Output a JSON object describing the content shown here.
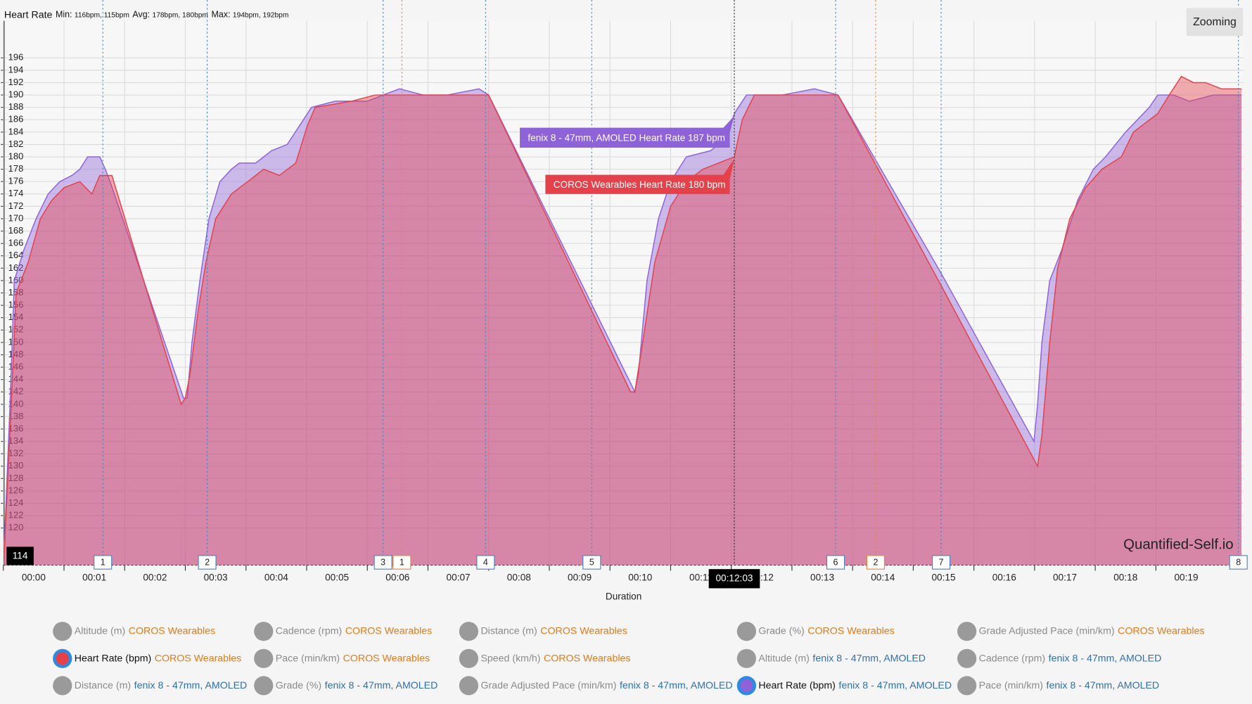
{
  "chart_data": {
    "type": "area",
    "title": "Heart Rate",
    "stats": [
      {
        "label": "Min:",
        "value": "116bpm, 115bpm"
      },
      {
        "label": "Avg:",
        "value": "178bpm, 180bpm"
      },
      {
        "label": "Max:",
        "value": "194bpm, 192bpm"
      }
    ],
    "x_label": "Duration",
    "xlim": [
      0,
      20.45
    ],
    "ylim": [
      114,
      202
    ],
    "grid": true,
    "xticks": [
      {
        "value": 0,
        "label": "00:00"
      },
      {
        "value": 1,
        "label": "00:01"
      },
      {
        "value": 2,
        "label": "00:02"
      },
      {
        "value": 3,
        "label": "00:03"
      },
      {
        "value": 4,
        "label": "00:04"
      },
      {
        "value": 5,
        "label": "00:05"
      },
      {
        "value": 6,
        "label": "00:06"
      },
      {
        "value": 7,
        "label": "00:07"
      },
      {
        "value": 8,
        "label": "00:08"
      },
      {
        "value": 9,
        "label": "00:09"
      },
      {
        "value": 10,
        "label": "00:10"
      },
      {
        "value": 11,
        "label": "00:11"
      },
      {
        "value": 12,
        "label": "00:12"
      },
      {
        "value": 13,
        "label": "00:13"
      },
      {
        "value": 14,
        "label": "00:14"
      },
      {
        "value": 15,
        "label": "00:15"
      },
      {
        "value": 16,
        "label": "00:16"
      },
      {
        "value": 17,
        "label": "00:17"
      },
      {
        "value": 18,
        "label": "00:18"
      },
      {
        "value": 19,
        "label": "00:19"
      }
    ],
    "yticks": [
      120,
      122,
      124,
      126,
      128,
      130,
      132,
      134,
      136,
      138,
      140,
      142,
      144,
      146,
      148,
      150,
      152,
      154,
      156,
      158,
      160,
      162,
      164,
      166,
      168,
      170,
      172,
      174,
      176,
      178,
      180,
      182,
      184,
      186,
      188,
      190,
      192,
      194,
      196
    ],
    "series": [
      {
        "name": "fenix 8 - 47mm, AMOLED",
        "color": "#8e63d8",
        "x": [
          0.01,
          0.11,
          0.18,
          0.34,
          0.54,
          0.74,
          0.93,
          1.13,
          1.26,
          1.39,
          1.59,
          1.68,
          1.76,
          2.97,
          3.03,
          3.11,
          3.24,
          3.39,
          3.57,
          3.76,
          3.89,
          4.16,
          4.42,
          4.68,
          4.88,
          5.08,
          5.47,
          6.0,
          6.26,
          6.53,
          6.92,
          7.32,
          7.84,
          8.0,
          10.41,
          10.47,
          10.61,
          10.8,
          11.0,
          11.26,
          11.66,
          11.92,
          12.05,
          12.25,
          12.84,
          13.37,
          13.76,
          15.47,
          16.99,
          17.05,
          17.12,
          17.25,
          17.45,
          17.71,
          17.97,
          18.17,
          18.5,
          18.89,
          19.03,
          19.29,
          19.55,
          19.95,
          20.41
        ],
        "values": [
          116,
          140,
          160,
          165,
          170,
          174,
          176,
          177,
          178,
          180,
          180,
          178,
          176,
          141,
          141,
          150,
          160,
          170,
          176,
          178,
          179,
          179,
          181,
          182,
          185,
          188,
          189,
          189,
          190,
          191,
          190,
          190,
          191,
          190,
          142,
          145,
          160,
          170,
          176,
          180,
          181,
          183,
          187,
          190,
          190,
          191,
          190,
          161,
          134,
          140,
          150,
          160,
          165,
          173,
          178,
          180,
          184,
          188,
          190,
          190,
          189,
          190,
          190
        ]
      },
      {
        "name": "COROS Wearables",
        "color": "#e5414b",
        "x": [
          0.01,
          0.13,
          0.21,
          0.41,
          0.61,
          0.8,
          1.0,
          1.26,
          1.46,
          1.59,
          1.79,
          2.93,
          3.0,
          3.08,
          3.21,
          3.34,
          3.5,
          3.76,
          4.03,
          4.29,
          4.55,
          4.82,
          5.01,
          5.14,
          5.74,
          6.13,
          6.53,
          7.32,
          8.0,
          10.34,
          10.41,
          10.54,
          10.74,
          11.0,
          11.26,
          11.53,
          11.79,
          12.05,
          12.18,
          12.38,
          13.11,
          13.76,
          15.47,
          17.05,
          17.12,
          17.25,
          17.38,
          17.58,
          17.84,
          18.11,
          18.43,
          18.63,
          19.03,
          19.22,
          19.42,
          19.62,
          19.82,
          20.08,
          20.41
        ],
        "values": [
          115,
          140,
          158,
          163,
          170,
          173,
          175,
          176,
          174,
          177,
          177,
          140,
          141,
          145,
          155,
          163,
          170,
          174,
          176,
          178,
          177,
          179,
          185,
          188,
          189,
          190,
          190,
          190,
          190,
          142,
          142,
          150,
          163,
          172,
          176,
          178,
          179,
          180,
          186,
          190,
          190,
          190,
          159,
          130,
          135,
          150,
          162,
          170,
          175,
          178,
          180,
          184,
          187,
          190,
          193,
          192,
          192,
          191,
          191
        ]
      }
    ],
    "laps": [
      {
        "color": "#4a83c4",
        "x": [
          1.64,
          3.36,
          6.26,
          7.95,
          9.7,
          13.72,
          15.46,
          20.36
        ],
        "labels": [
          "1",
          "2",
          "3",
          "4",
          "5",
          "6",
          "7",
          "8"
        ]
      },
      {
        "color": "#e8833a",
        "x": [
          6.57,
          14.38
        ],
        "labels": [
          "1",
          "2"
        ]
      }
    ],
    "tooltips": [
      "fenix 8 - 47mm, AMOLED Heart Rate 187 bpm",
      "COROS Wearables Heart Rate 180 bpm"
    ],
    "cursor": {
      "x": 12.05,
      "x_label": "00:12:03",
      "y_label": "114"
    },
    "watermark": "Quantified-Self.io"
  },
  "zoom_button": "Zooming",
  "legend": [
    {
      "metric": "Altitude (m)",
      "device": "COROS Wearables",
      "active": false
    },
    {
      "metric": "Cadence (rpm)",
      "device": "COROS Wearables",
      "active": false
    },
    {
      "metric": "Distance (m)",
      "device": "COROS Wearables",
      "active": false
    },
    {
      "metric": "Grade (%)",
      "device": "COROS Wearables",
      "active": false
    },
    {
      "metric": "Grade Adjusted Pace (min/km)",
      "device": "COROS Wearables",
      "active": false
    },
    {
      "metric": "Heart Rate (bpm)",
      "device": "COROS Wearables",
      "active": true
    },
    {
      "metric": "Pace (min/km)",
      "device": "COROS Wearables",
      "active": false
    },
    {
      "metric": "Speed (km/h)",
      "device": "COROS Wearables",
      "active": false
    },
    {
      "metric": "Altitude (m)",
      "device": "fenix 8 - 47mm, AMOLED",
      "active": false
    },
    {
      "metric": "Cadence (rpm)",
      "device": "fenix 8 - 47mm, AMOLED",
      "active": false
    },
    {
      "metric": "Distance (m)",
      "device": "fenix 8 - 47mm, AMOLED",
      "active": false
    },
    {
      "metric": "Grade (%)",
      "device": "fenix 8 - 47mm, AMOLED",
      "active": false
    },
    {
      "metric": "Grade Adjusted Pace (min/km)",
      "device": "fenix 8 - 47mm, AMOLED",
      "active": false
    },
    {
      "metric": "Heart Rate (bpm)",
      "device": "fenix 8 - 47mm, AMOLED",
      "active": true
    },
    {
      "metric": "Pace (min/km)",
      "device": "fenix 8 - 47mm, AMOLED",
      "active": false
    }
  ]
}
